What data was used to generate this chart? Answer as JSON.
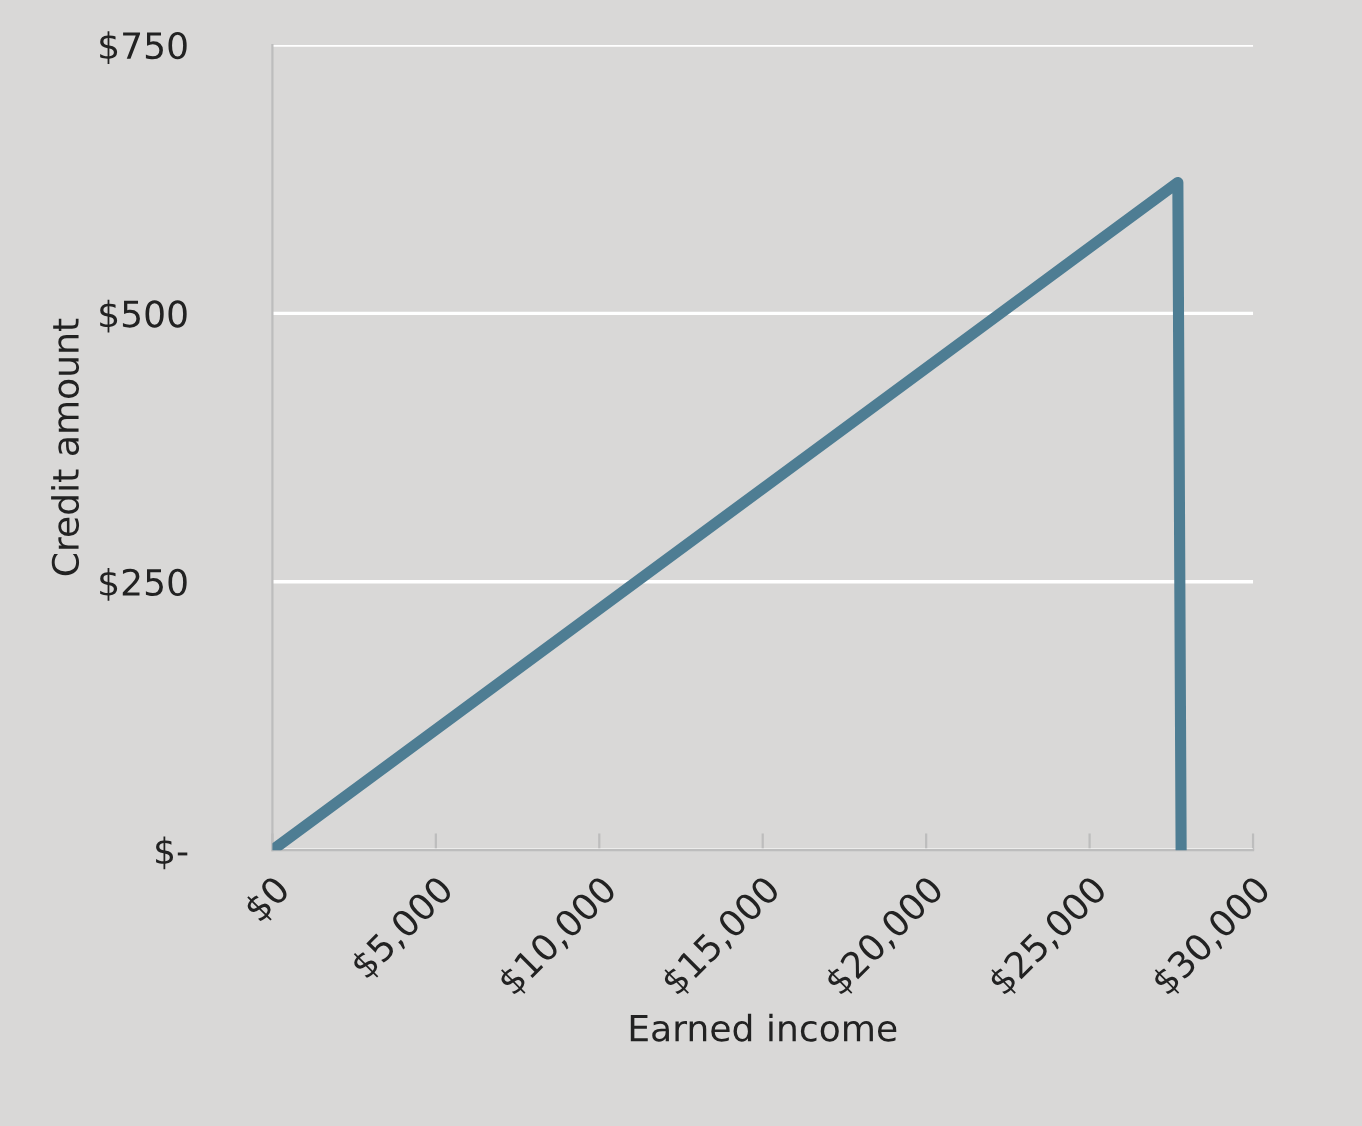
{
  "chart_data": {
    "type": "line",
    "xlabel": "Earned income",
    "ylabel": "Credit amount",
    "x": [
      0,
      27700,
      27800
    ],
    "series": [
      {
        "color": "#4e7d93",
        "values": [
          0,
          622,
          0
        ]
      }
    ],
    "xlim": [
      0,
      30000
    ],
    "ylim": [
      0,
      750
    ],
    "xticks": [
      {
        "value": 0,
        "label": "$0"
      },
      {
        "value": 5000,
        "label": "$5,000"
      },
      {
        "value": 10000,
        "label": "$10,000"
      },
      {
        "value": 15000,
        "label": "$15,000"
      },
      {
        "value": 20000,
        "label": "$20,000"
      },
      {
        "value": 25000,
        "label": "$25,000"
      },
      {
        "value": 30000,
        "label": "$30,000"
      }
    ],
    "yticks": [
      {
        "value": 0,
        "label": "$-"
      },
      {
        "value": 250,
        "label": "$250"
      },
      {
        "value": 500,
        "label": "$500"
      },
      {
        "value": 750,
        "label": "$750"
      }
    ],
    "grid": "y",
    "marker": "none",
    "line_style": "solid"
  }
}
